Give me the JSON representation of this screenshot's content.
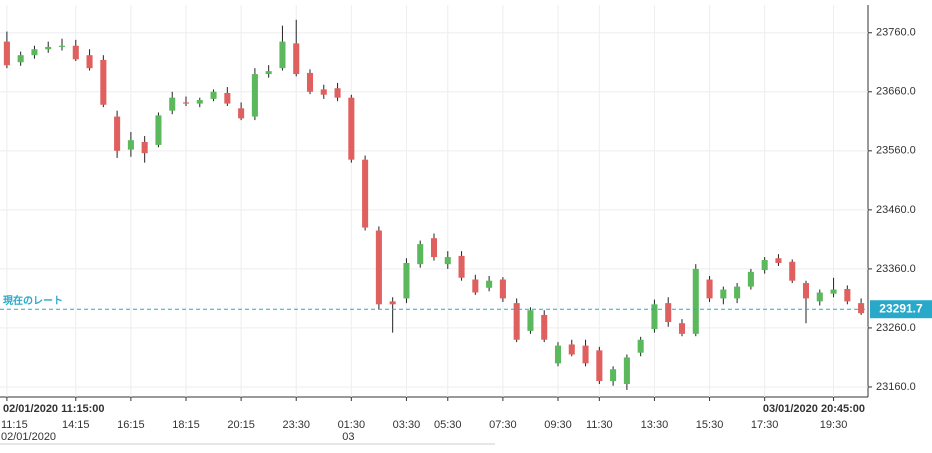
{
  "chart_data": {
    "type": "candlestick",
    "x": [
      "11:15",
      null,
      null,
      null,
      null,
      "14:15",
      null,
      null,
      null,
      "16:15",
      null,
      null,
      null,
      "18:15",
      null,
      null,
      null,
      "20:15",
      null,
      null,
      null,
      "23:30",
      null,
      null,
      null,
      "01:30",
      null,
      null,
      null,
      "03:30",
      null,
      null,
      "05:30",
      null,
      null,
      null,
      "07:30",
      null,
      null,
      null,
      "09:30",
      null,
      null,
      "11:30",
      null,
      null,
      null,
      "13:30",
      null,
      null,
      null,
      "15:30",
      null,
      null,
      null,
      "17:30",
      null,
      null,
      null,
      null,
      "19:30",
      null,
      null
    ],
    "open": [
      23745,
      23710,
      23722,
      23732,
      23736,
      23738,
      23722,
      23714,
      23618,
      23562,
      23575,
      23570,
      23628,
      23642,
      23640,
      23648,
      23658,
      23632,
      23618,
      23690,
      23700,
      23742,
      23692,
      23664,
      23666,
      23650,
      23545,
      23425,
      23305,
      23310,
      23368,
      23412,
      23368,
      23382,
      23342,
      23328,
      23342,
      23302,
      23255,
      23282,
      23200,
      23232,
      23230,
      23222,
      23170,
      23165,
      23218,
      23258,
      23302,
      23268,
      23250,
      23342,
      23310,
      23310,
      23330,
      23358,
      23378,
      23372,
      23336,
      23305,
      23318,
      23326,
      23302
    ],
    "high": [
      23762,
      23728,
      23738,
      23745,
      23750,
      23748,
      23732,
      23722,
      23628,
      23592,
      23585,
      23625,
      23660,
      23652,
      23650,
      23664,
      23668,
      23642,
      23700,
      23705,
      23772,
      23782,
      23698,
      23672,
      23675,
      23655,
      23552,
      23432,
      23312,
      23378,
      23408,
      23420,
      23390,
      23390,
      23350,
      23348,
      23346,
      23310,
      23295,
      23290,
      23236,
      23240,
      23240,
      23228,
      23195,
      23215,
      23245,
      23308,
      23312,
      23275,
      23368,
      23348,
      23330,
      23336,
      23360,
      23380,
      23385,
      23376,
      23340,
      23325,
      23345,
      23332,
      23310
    ],
    "low": [
      23700,
      23704,
      23716,
      23726,
      23730,
      23712,
      23696,
      23634,
      23548,
      23550,
      23540,
      23566,
      23622,
      23636,
      23634,
      23644,
      23636,
      23612,
      23612,
      23684,
      23696,
      23686,
      23656,
      23648,
      23644,
      23540,
      23425,
      23292,
      23252,
      23302,
      23362,
      23374,
      23360,
      23340,
      23316,
      23322,
      23304,
      23236,
      23250,
      23236,
      23195,
      23212,
      23195,
      23165,
      23162,
      23155,
      23212,
      23252,
      23262,
      23246,
      23246,
      23304,
      23300,
      23302,
      23325,
      23352,
      23365,
      23336,
      23268,
      23298,
      23312,
      23300,
      23282
    ],
    "close": [
      23705,
      23722,
      23732,
      23736,
      23738,
      23715,
      23700,
      23638,
      23560,
      23578,
      23556,
      23620,
      23650,
      23640,
      23646,
      23660,
      23640,
      23615,
      23690,
      23695,
      23745,
      23690,
      23660,
      23655,
      23650,
      23545,
      23430,
      23300,
      23300,
      23370,
      23402,
      23380,
      23380,
      23345,
      23320,
      23340,
      23310,
      23240,
      23290,
      23240,
      23230,
      23215,
      23200,
      23170,
      23190,
      23210,
      23240,
      23300,
      23270,
      23250,
      23360,
      23310,
      23325,
      23330,
      23355,
      23375,
      23370,
      23340,
      23310,
      23320,
      23325,
      23305,
      23285
    ],
    "up_color": "#5cb85c",
    "down_color": "#e06060",
    "ylim": [
      23143,
      23807
    ],
    "yticks": [
      {
        "value": 23160,
        "label": "23160.0"
      },
      {
        "value": 23260,
        "label": "23260.0"
      },
      {
        "value": 23360,
        "label": "23360.0"
      },
      {
        "value": 23460,
        "label": "23460.0"
      },
      {
        "value": 23560,
        "label": "23560.0"
      },
      {
        "value": 23660,
        "label": "23660.0"
      },
      {
        "value": 23760,
        "label": "23760.0"
      }
    ],
    "grid": true,
    "current_rate": {
      "label": "現在のレート",
      "value": 23291.7,
      "color": "#29a9c9"
    },
    "range_start": "02/01/2020 11:15:00",
    "range_end": "03/01/2020 20:45:00",
    "start_date": "02/01/2020",
    "day_label": {
      "index": 25,
      "text": "03"
    }
  }
}
